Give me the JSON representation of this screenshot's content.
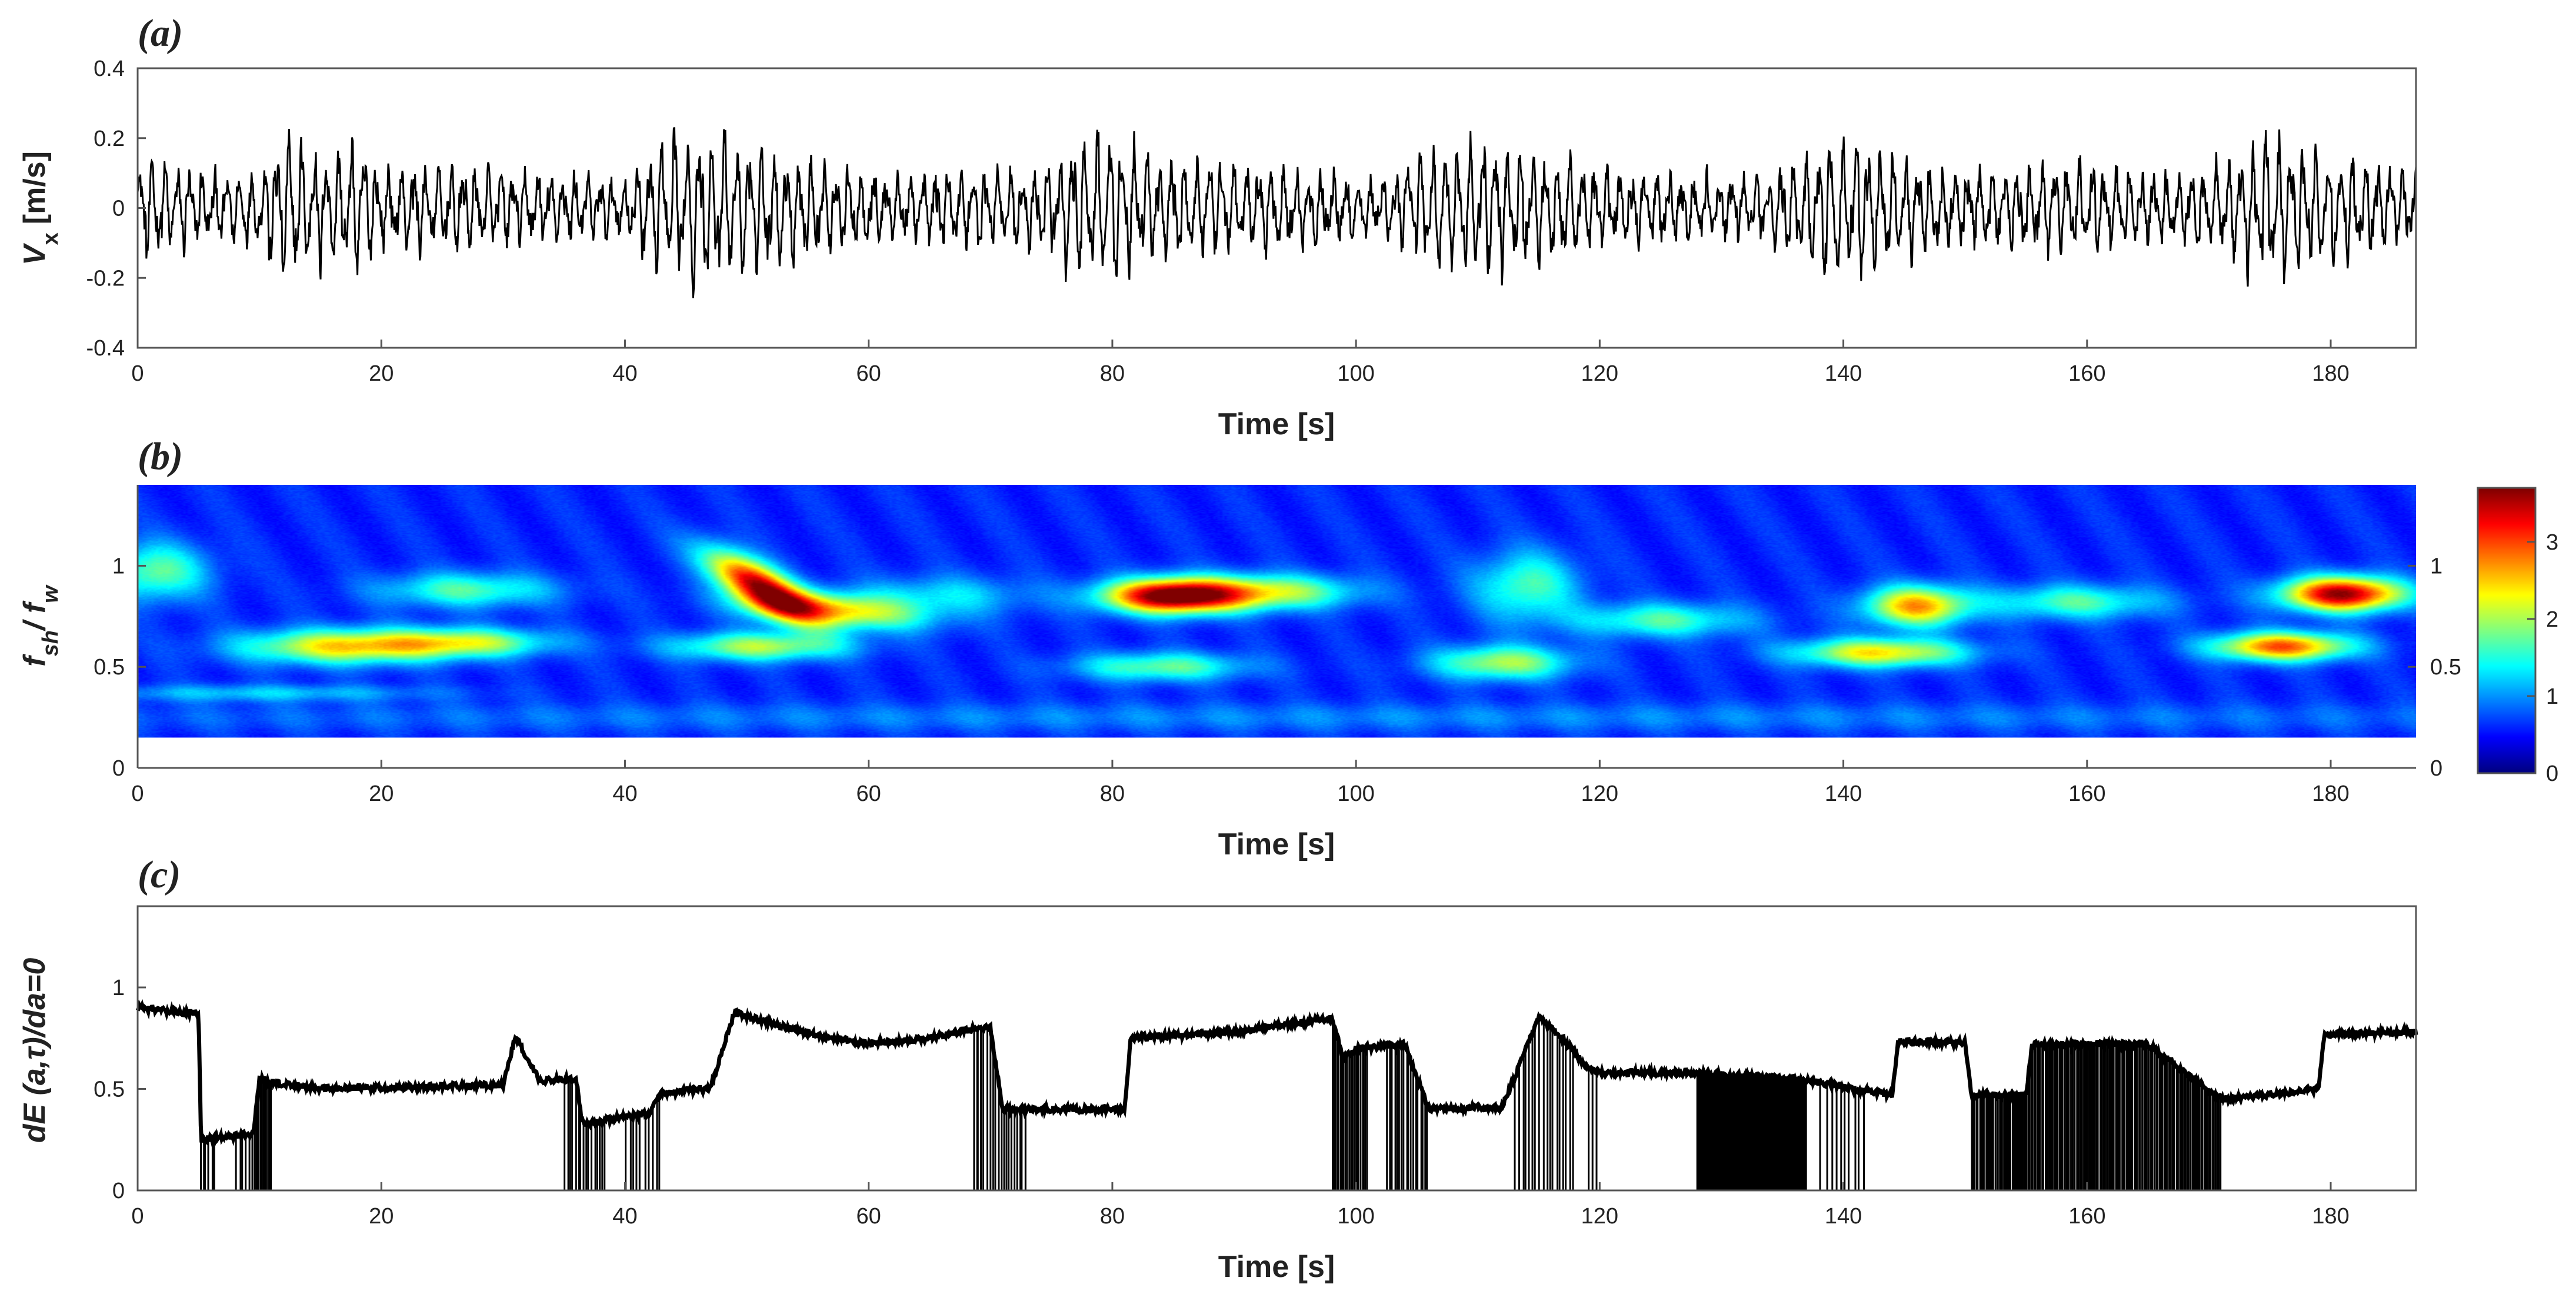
{
  "colors": {
    "trace": "#000000",
    "axis": "#555555",
    "background": "#ffffff"
  },
  "chart_data": [
    {
      "type": "line",
      "panel_label": "(a)",
      "xlabel": "Time [s]",
      "ylabel_main": "V",
      "ylabel_sub": "x",
      "ylabel_unit": "[m/s]",
      "xlim": [
        0,
        187
      ],
      "ylim": [
        -0.4,
        0.4
      ],
      "xticks": [
        0,
        20,
        40,
        60,
        80,
        100,
        120,
        140,
        160,
        180
      ],
      "yticks": [
        -0.4,
        -0.2,
        0,
        0.2,
        0.4
      ],
      "ytick_labels": [
        "-0.4",
        "-0.2",
        "0",
        "0.2",
        "0.4"
      ],
      "envelope": {
        "t": [
          0,
          2,
          6,
          10,
          12,
          14,
          16,
          18,
          20,
          24,
          28,
          32,
          36,
          40,
          43,
          46,
          50,
          54,
          58,
          62,
          66,
          70,
          74,
          77,
          80,
          83,
          86,
          90,
          94,
          98,
          102,
          106,
          109,
          112,
          116,
          120,
          124,
          128,
          132,
          136,
          139,
          142,
          145,
          148,
          152,
          156,
          160,
          164,
          168,
          172,
          175,
          178,
          181,
          184,
          187
        ],
        "amp": [
          0.17,
          0.14,
          0.1,
          0.12,
          0.24,
          0.2,
          0.17,
          0.22,
          0.12,
          0.13,
          0.12,
          0.11,
          0.1,
          0.08,
          0.22,
          0.25,
          0.22,
          0.16,
          0.12,
          0.1,
          0.11,
          0.13,
          0.12,
          0.22,
          0.25,
          0.2,
          0.15,
          0.13,
          0.12,
          0.1,
          0.08,
          0.18,
          0.22,
          0.2,
          0.17,
          0.12,
          0.11,
          0.1,
          0.09,
          0.15,
          0.24,
          0.2,
          0.15,
          0.12,
          0.11,
          0.13,
          0.14,
          0.12,
          0.11,
          0.15,
          0.25,
          0.2,
          0.16,
          0.13,
          0.12
        ]
      }
    },
    {
      "type": "heatmap",
      "panel_label": "(b)",
      "xlabel": "Time [s]",
      "ylabel_main": "f",
      "ylabel_sub1": "sh",
      "ylabel_mid": "/ f",
      "ylabel_sub2": "w",
      "xlim": [
        0,
        187
      ],
      "ylim": [
        0,
        1.4
      ],
      "data_ylim": [
        0.15,
        1.4
      ],
      "xticks": [
        0,
        20,
        40,
        60,
        80,
        100,
        120,
        140,
        160,
        180
      ],
      "yticks": [
        0,
        0.5,
        1
      ],
      "ytick_labels": [
        "0",
        "0.5",
        "1"
      ],
      "colorbar": {
        "min": 0,
        "max": 3.7,
        "ticks": [
          0,
          1,
          2,
          3
        ],
        "tick_labels": [
          "0",
          "1",
          "2",
          "3"
        ],
        "colormap": "jet"
      },
      "background_level": 0.35,
      "blobs": [
        {
          "t": 1.5,
          "f": 0.97,
          "amp": 1.3,
          "st": 3,
          "sf": 0.1,
          "slope": 0
        },
        {
          "t": 17,
          "f": 0.6,
          "amp": 2.0,
          "st": 6,
          "sf": 0.06,
          "slope": 0
        },
        {
          "t": 27,
          "f": 0.62,
          "amp": 1.5,
          "st": 5,
          "sf": 0.05,
          "slope": 0
        },
        {
          "t": 27,
          "f": 0.88,
          "amp": 1.2,
          "st": 5,
          "sf": 0.06,
          "slope": 0
        },
        {
          "t": 51,
          "f": 0.9,
          "amp": 3.3,
          "st": 3,
          "sf": 0.08,
          "slope": -0.03
        },
        {
          "t": 57,
          "f": 0.78,
          "amp": 2.0,
          "st": 5,
          "sf": 0.06,
          "slope": -0.005
        },
        {
          "t": 66,
          "f": 0.85,
          "amp": 0.8,
          "st": 5,
          "sf": 0.07,
          "slope": 0
        },
        {
          "t": 51,
          "f": 0.6,
          "amp": 1.6,
          "st": 5,
          "sf": 0.05,
          "slope": 0
        },
        {
          "t": 85,
          "f": 0.85,
          "amp": 3.6,
          "st": 4,
          "sf": 0.06,
          "slope": 0
        },
        {
          "t": 93,
          "f": 0.87,
          "amp": 1.6,
          "st": 5,
          "sf": 0.06,
          "slope": 0
        },
        {
          "t": 84,
          "f": 0.5,
          "amp": 1.3,
          "st": 5,
          "sf": 0.05,
          "slope": 0
        },
        {
          "t": 112,
          "f": 0.52,
          "amp": 1.6,
          "st": 4,
          "sf": 0.06,
          "slope": 0
        },
        {
          "t": 114,
          "f": 0.9,
          "amp": 1.2,
          "st": 3,
          "sf": 0.12,
          "slope": 0
        },
        {
          "t": 125,
          "f": 0.73,
          "amp": 1.2,
          "st": 5,
          "sf": 0.06,
          "slope": 0
        },
        {
          "t": 143,
          "f": 0.57,
          "amp": 2.0,
          "st": 5,
          "sf": 0.05,
          "slope": 0
        },
        {
          "t": 146,
          "f": 0.8,
          "amp": 2.3,
          "st": 3,
          "sf": 0.07,
          "slope": 0
        },
        {
          "t": 159,
          "f": 0.82,
          "amp": 1.2,
          "st": 5,
          "sf": 0.06,
          "slope": 0
        },
        {
          "t": 176,
          "f": 0.6,
          "amp": 2.6,
          "st": 4,
          "sf": 0.05,
          "slope": 0
        },
        {
          "t": 181,
          "f": 0.86,
          "amp": 3.4,
          "st": 3.5,
          "sf": 0.06,
          "slope": 0
        },
        {
          "t": 10,
          "f": 0.37,
          "amp": 0.7,
          "st": 10,
          "sf": 0.03,
          "slope": 0
        },
        {
          "t": 100,
          "f": 0.25,
          "amp": 0.4,
          "st": 90,
          "sf": 0.05,
          "slope": 0
        }
      ]
    },
    {
      "type": "line",
      "panel_label": "(c)",
      "xlabel": "Time [s]",
      "ylabel": "dE (a,τ)/da=0",
      "xlim": [
        0,
        187
      ],
      "ylim": [
        0,
        1.4
      ],
      "xticks": [
        0,
        20,
        40,
        60,
        80,
        100,
        120,
        140,
        160,
        180
      ],
      "yticks": [
        0,
        0.5,
        1
      ],
      "ytick_labels": [
        "0",
        "0.5",
        "1"
      ],
      "baseline": {
        "t": [
          0,
          5,
          5.2,
          9.5,
          10,
          12,
          15,
          30,
          31,
          33,
          36,
          36.5,
          42,
          43,
          47,
          49,
          52,
          56,
          60,
          65,
          69,
          70,
          71,
          81,
          81.5,
          90,
          98,
          99,
          100,
          104,
          106,
          106.5,
          112,
          115,
          117,
          119,
          120,
          128,
          136,
          144,
          144.5,
          150,
          150.5,
          155,
          155.5,
          165,
          171,
          172,
          179,
          179.5,
          187
        ],
        "v": [
          0.9,
          0.87,
          0.25,
          0.28,
          0.55,
          0.52,
          0.5,
          0.52,
          0.76,
          0.54,
          0.55,
          0.33,
          0.38,
          0.48,
          0.5,
          0.88,
          0.82,
          0.76,
          0.72,
          0.75,
          0.8,
          0.8,
          0.4,
          0.4,
          0.75,
          0.78,
          0.85,
          0.65,
          0.7,
          0.72,
          0.4,
          0.4,
          0.41,
          0.85,
          0.75,
          0.6,
          0.58,
          0.58,
          0.55,
          0.47,
          0.73,
          0.73,
          0.47,
          0.47,
          0.72,
          0.72,
          0.45,
          0.45,
          0.5,
          0.77,
          0.78
        ]
      },
      "dropout_regions": [
        [
          5,
          6.5,
          6
        ],
        [
          8,
          9.5,
          6
        ],
        [
          9.5,
          11,
          10
        ],
        [
          35,
          38.5,
          16
        ],
        [
          40,
          43,
          10
        ],
        [
          68.5,
          73,
          20
        ],
        [
          98,
          101,
          22
        ],
        [
          102.5,
          106,
          18
        ],
        [
          113,
          118,
          18
        ],
        [
          119,
          120,
          3
        ],
        [
          128,
          137,
          140
        ],
        [
          138,
          142,
          10
        ],
        [
          150.5,
          171,
          160
        ]
      ]
    }
  ]
}
